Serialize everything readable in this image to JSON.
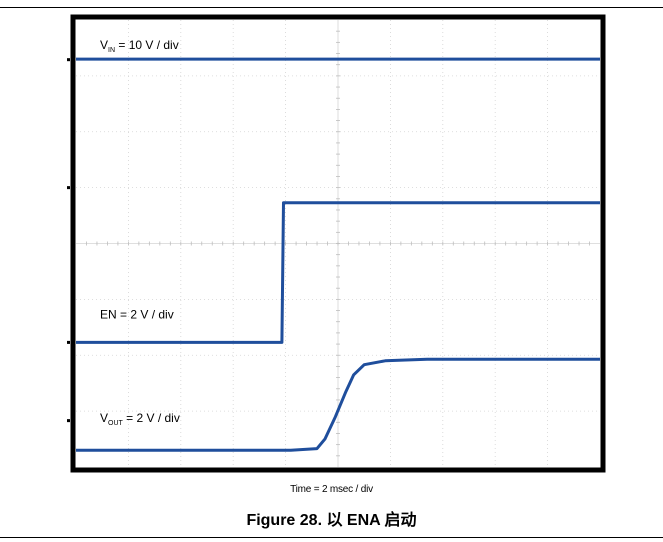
{
  "chart_data": {
    "type": "line",
    "xlabel": "Time = 2 msec / div",
    "time_per_div_ms": 2,
    "divisions": {
      "x": 10,
      "y": 8
    },
    "xlim_div": [
      0,
      10
    ],
    "ylim_div": [
      0,
      8
    ],
    "grid": true,
    "series": [
      {
        "name": "VIN",
        "label_main": "V",
        "label_sub": "IN",
        "label_rest": " = 10 V / div",
        "color": "#1f4e9c",
        "points": [
          [
            0,
            7.3
          ],
          [
            10,
            7.3
          ]
        ]
      },
      {
        "name": "EN",
        "label_main": "EN = 2 V / div",
        "label_sub": "",
        "label_rest": "",
        "color": "#1f4e9c",
        "points": [
          [
            0,
            2.23
          ],
          [
            3.93,
            2.23
          ],
          [
            3.96,
            4.73
          ],
          [
            10,
            4.73
          ]
        ]
      },
      {
        "name": "VOUT",
        "label_main": "V",
        "label_sub": "OUT",
        "label_rest": " = 2 V / div",
        "color": "#1f4e9c",
        "points": [
          [
            0,
            0.3
          ],
          [
            4.1,
            0.3
          ],
          [
            4.6,
            0.33
          ],
          [
            4.75,
            0.5
          ],
          [
            4.95,
            0.9
          ],
          [
            5.15,
            1.35
          ],
          [
            5.3,
            1.65
          ],
          [
            5.5,
            1.83
          ],
          [
            5.9,
            1.9
          ],
          [
            6.7,
            1.93
          ],
          [
            10,
            1.93
          ]
        ]
      }
    ]
  },
  "caption": {
    "text": "Figure 28. 以 ENA 启动"
  }
}
